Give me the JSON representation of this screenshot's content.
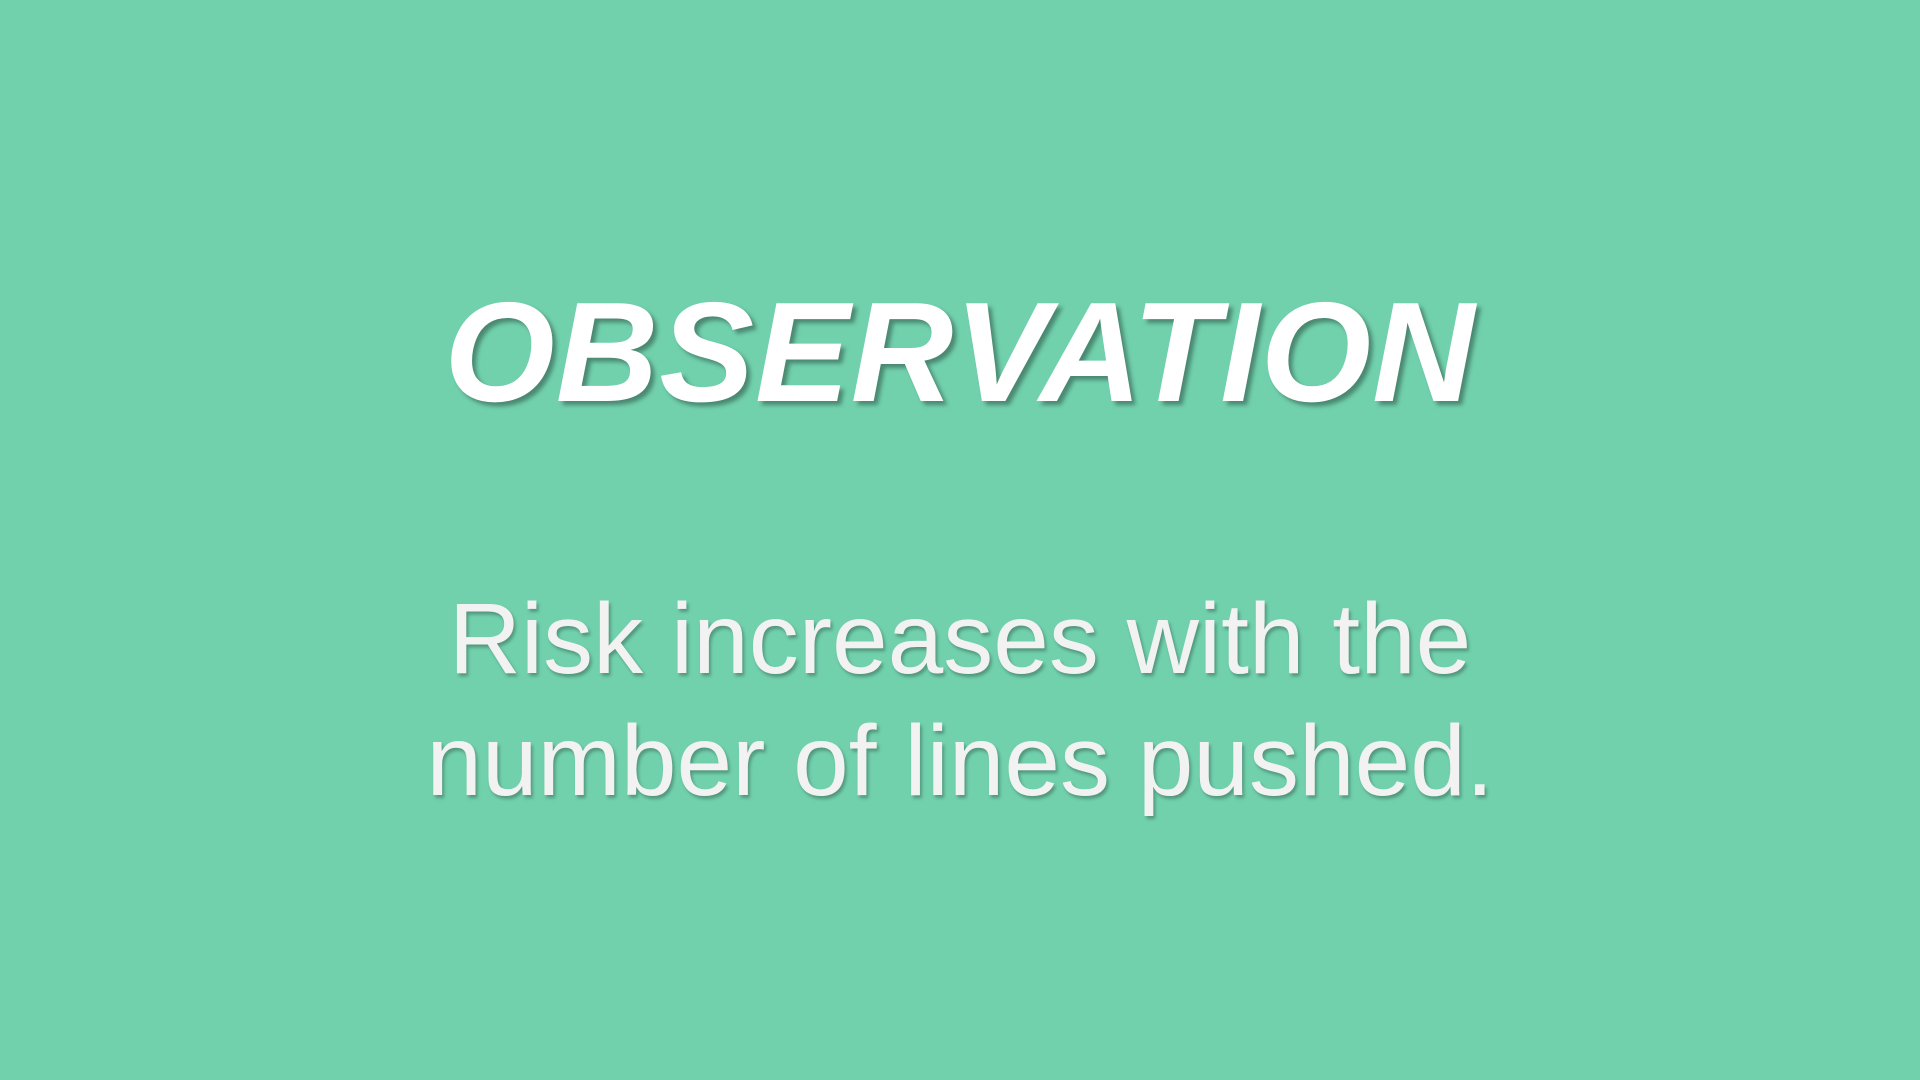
{
  "slide": {
    "title": "OBSERVATION",
    "body_lines": [
      "Risk increases with the",
      "number of lines pushed."
    ]
  },
  "colors": {
    "background": "#71d1ad",
    "title_text": "#ffffff",
    "body_text": "#f2f2f2"
  }
}
